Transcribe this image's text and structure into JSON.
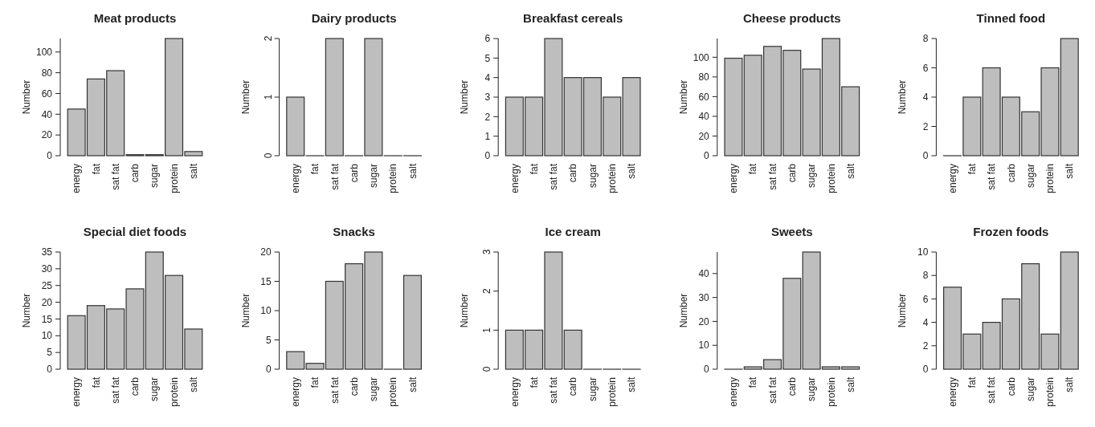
{
  "chart_data": [
    {
      "type": "bar",
      "title": "Meat products",
      "ylabel": "Number",
      "categories": [
        "energy",
        "fat",
        "sat fat",
        "carb",
        "sugar",
        "protein",
        "salt"
      ],
      "values": [
        45,
        74,
        82,
        1,
        1,
        113,
        4
      ],
      "color": "#bebebe",
      "ylim": [
        0,
        113
      ],
      "yticks": [
        0,
        20,
        40,
        60,
        80,
        100
      ]
    },
    {
      "type": "bar",
      "title": "Dairy products",
      "ylabel": "Number",
      "categories": [
        "energy",
        "fat",
        "sat fat",
        "carb",
        "sugar",
        "protein",
        "salt"
      ],
      "values": [
        1,
        0,
        2,
        0,
        2,
        0,
        0
      ],
      "color": "#bebebe",
      "ylim": [
        0,
        2
      ],
      "yticks": [
        0,
        1,
        2
      ]
    },
    {
      "type": "bar",
      "title": "Breakfast cereals",
      "ylabel": "Number",
      "categories": [
        "energy",
        "fat",
        "sat fat",
        "carb",
        "sugar",
        "protein",
        "salt"
      ],
      "values": [
        3,
        3,
        6,
        4,
        4,
        3,
        4
      ],
      "color": "#bebebe",
      "ylim": [
        0,
        6
      ],
      "yticks": [
        0,
        1,
        2,
        3,
        4,
        5,
        6
      ]
    },
    {
      "type": "bar",
      "title": "Cheese products",
      "ylabel": "Number",
      "categories": [
        "energy",
        "fat",
        "sat fat",
        "carb",
        "sugar",
        "protein",
        "salt"
      ],
      "values": [
        99,
        102,
        111,
        107,
        88,
        119,
        70
      ],
      "color": "#bebebe",
      "ylim": [
        0,
        119
      ],
      "yticks": [
        0,
        20,
        40,
        60,
        80,
        100
      ]
    },
    {
      "type": "bar",
      "title": "Tinned food",
      "ylabel": "Number",
      "categories": [
        "energy",
        "fat",
        "sat fat",
        "carb",
        "sugar",
        "protein",
        "salt"
      ],
      "values": [
        0,
        4,
        6,
        4,
        3,
        6,
        8
      ],
      "color": "#bebebe",
      "ylim": [
        0,
        8
      ],
      "yticks": [
        0,
        2,
        4,
        6,
        8
      ]
    },
    {
      "type": "bar",
      "title": "Special diet foods",
      "ylabel": "Number",
      "categories": [
        "energy",
        "fat",
        "sat fat",
        "carb",
        "sugar",
        "protein",
        "salt"
      ],
      "values": [
        16,
        19,
        18,
        24,
        35,
        28,
        12
      ],
      "color": "#bebebe",
      "ylim": [
        0,
        35
      ],
      "yticks": [
        0,
        5,
        10,
        15,
        20,
        25,
        30,
        35
      ]
    },
    {
      "type": "bar",
      "title": "Snacks",
      "ylabel": "Number",
      "categories": [
        "energy",
        "fat",
        "sat fat",
        "carb",
        "sugar",
        "protein",
        "salt"
      ],
      "values": [
        3,
        1,
        15,
        18,
        20,
        0,
        16
      ],
      "color": "#bebebe",
      "ylim": [
        0,
        20
      ],
      "yticks": [
        0,
        5,
        10,
        15,
        20
      ]
    },
    {
      "type": "bar",
      "title": "Ice cream",
      "ylabel": "Number",
      "categories": [
        "energy",
        "fat",
        "sat fat",
        "carb",
        "sugar",
        "protein",
        "salt"
      ],
      "values": [
        1,
        1,
        3,
        1,
        0,
        0,
        0
      ],
      "color": "#bebebe",
      "ylim": [
        0,
        3
      ],
      "yticks": [
        0,
        1,
        2,
        3
      ]
    },
    {
      "type": "bar",
      "title": "Sweets",
      "ylabel": "Number",
      "categories": [
        "energy",
        "fat",
        "sat fat",
        "carb",
        "sugar",
        "protein",
        "salt"
      ],
      "values": [
        0,
        1,
        4,
        38,
        49,
        1,
        1
      ],
      "color": "#bebebe",
      "ylim": [
        0,
        49
      ],
      "yticks": [
        0,
        10,
        20,
        30,
        40
      ]
    },
    {
      "type": "bar",
      "title": "Frozen foods",
      "ylabel": "Number",
      "categories": [
        "energy",
        "fat",
        "sat fat",
        "carb",
        "sugar",
        "protein",
        "salt"
      ],
      "values": [
        7,
        3,
        4,
        6,
        9,
        3,
        10
      ],
      "color": "#bebebe",
      "ylim": [
        0,
        10
      ],
      "yticks": [
        0,
        2,
        4,
        6,
        8,
        10
      ]
    }
  ]
}
